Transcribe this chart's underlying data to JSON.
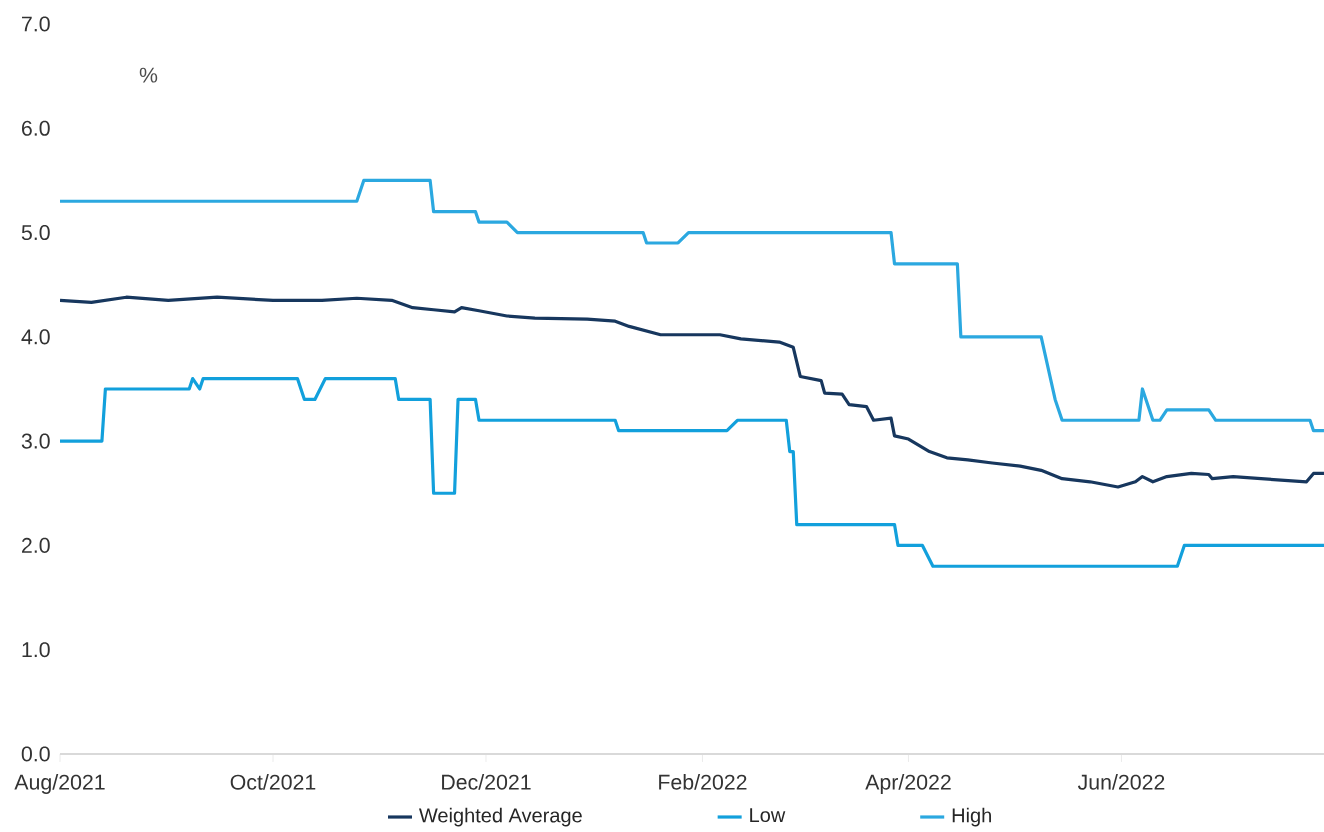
{
  "chart_data": {
    "type": "line",
    "ylabel": "%",
    "xlim": [
      "2021-08-01",
      "2022-07-29"
    ],
    "xticks": [
      {
        "value": "2021-08-01",
        "label": "Aug/2021"
      },
      {
        "value": "2021-10-01",
        "label": "Oct/2021"
      },
      {
        "value": "2021-12-01",
        "label": "Dec/2021"
      },
      {
        "value": "2022-02-01",
        "label": "Feb/2022"
      },
      {
        "value": "2022-04-01",
        "label": "Apr/2022"
      },
      {
        "value": "2022-06-01",
        "label": "Jun/2022"
      }
    ],
    "ylim": [
      0,
      7
    ],
    "yticks": [
      {
        "value": 0,
        "label": "0.0"
      },
      {
        "value": 1,
        "label": "1.0"
      },
      {
        "value": 2,
        "label": "2.0"
      },
      {
        "value": 3,
        "label": "3.0"
      },
      {
        "value": 4,
        "label": "4.0"
      },
      {
        "value": 5,
        "label": "5.0"
      },
      {
        "value": 6,
        "label": "6.0"
      },
      {
        "value": 7,
        "label": "7.0"
      }
    ],
    "legend": "bottom",
    "grid": false,
    "marker": "none",
    "line_style": "solid",
    "series": [
      {
        "name": "Weighted Average",
        "color": "#17375e",
        "x": [
          "2021-08-01",
          "2021-08-10",
          "2021-08-20",
          "2021-09-01",
          "2021-09-15",
          "2021-10-01",
          "2021-10-15",
          "2021-10-25",
          "2021-11-04",
          "2021-11-10",
          "2021-11-16",
          "2021-11-22",
          "2021-11-24",
          "2021-11-29",
          "2021-12-07",
          "2021-12-15",
          "2021-12-30",
          "2022-01-07",
          "2022-01-11",
          "2022-01-20",
          "2022-02-06",
          "2022-02-12",
          "2022-02-23",
          "2022-02-27",
          "2022-03-01",
          "2022-03-07",
          "2022-03-08",
          "2022-03-13",
          "2022-03-15",
          "2022-03-20",
          "2022-03-22",
          "2022-03-27",
          "2022-03-28",
          "2022-04-01",
          "2022-04-07",
          "2022-04-12",
          "2022-04-18",
          "2022-04-25",
          "2022-05-03",
          "2022-05-09",
          "2022-05-15",
          "2022-05-23",
          "2022-05-31",
          "2022-06-05",
          "2022-06-07",
          "2022-06-10",
          "2022-06-14",
          "2022-06-21",
          "2022-06-26",
          "2022-06-27",
          "2022-07-03",
          "2022-07-11",
          "2022-07-24",
          "2022-07-26",
          "2022-07-29"
        ],
        "values": [
          4.35,
          4.33,
          4.38,
          4.35,
          4.38,
          4.35,
          4.35,
          4.37,
          4.35,
          4.28,
          4.26,
          4.24,
          4.28,
          4.25,
          4.2,
          4.18,
          4.17,
          4.15,
          4.1,
          4.02,
          4.02,
          3.98,
          3.95,
          3.9,
          3.62,
          3.58,
          3.46,
          3.45,
          3.35,
          3.33,
          3.2,
          3.22,
          3.05,
          3.02,
          2.9,
          2.84,
          2.82,
          2.79,
          2.76,
          2.72,
          2.64,
          2.61,
          2.56,
          2.61,
          2.66,
          2.61,
          2.66,
          2.69,
          2.68,
          2.64,
          2.66,
          2.64,
          2.61,
          2.69,
          2.69
        ]
      },
      {
        "name": "Low",
        "color": "#12a0dc",
        "x": [
          "2021-08-01",
          "2021-08-13",
          "2021-08-14",
          "2021-09-07",
          "2021-09-08",
          "2021-09-10",
          "2021-09-11",
          "2021-10-08",
          "2021-10-10",
          "2021-10-13",
          "2021-10-16",
          "2021-11-05",
          "2021-11-06",
          "2021-11-15",
          "2021-11-16",
          "2021-11-22",
          "2021-11-23",
          "2021-11-28",
          "2021-11-29",
          "2022-01-07",
          "2022-01-08",
          "2022-02-08",
          "2022-02-11",
          "2022-02-25",
          "2022-02-26",
          "2022-02-27",
          "2022-02-28",
          "2022-03-28",
          "2022-03-29",
          "2022-04-05",
          "2022-04-08",
          "2022-06-17",
          "2022-06-19",
          "2022-07-29"
        ],
        "values": [
          3.0,
          3.0,
          3.5,
          3.5,
          3.6,
          3.5,
          3.6,
          3.6,
          3.4,
          3.4,
          3.6,
          3.6,
          3.4,
          3.4,
          2.5,
          2.5,
          3.4,
          3.4,
          3.2,
          3.2,
          3.1,
          3.1,
          3.2,
          3.2,
          2.9,
          2.9,
          2.2,
          2.2,
          2.0,
          2.0,
          1.8,
          1.8,
          2.0,
          2.0
        ]
      },
      {
        "name": "High",
        "color": "#2ba8e0",
        "x": [
          "2021-08-01",
          "2021-10-25",
          "2021-10-27",
          "2021-11-15",
          "2021-11-16",
          "2021-11-28",
          "2021-11-29",
          "2021-12-07",
          "2021-12-10",
          "2022-01-15",
          "2022-01-16",
          "2022-01-25",
          "2022-01-28",
          "2022-03-27",
          "2022-03-28",
          "2022-04-15",
          "2022-04-16",
          "2022-05-09",
          "2022-05-13",
          "2022-05-15",
          "2022-06-06",
          "2022-06-07",
          "2022-06-10",
          "2022-06-12",
          "2022-06-14",
          "2022-06-26",
          "2022-06-28",
          "2022-07-25",
          "2022-07-26",
          "2022-07-29"
        ],
        "values": [
          5.3,
          5.3,
          5.5,
          5.5,
          5.2,
          5.2,
          5.1,
          5.1,
          5.0,
          5.0,
          4.9,
          4.9,
          5.0,
          5.0,
          4.7,
          4.7,
          4.0,
          4.0,
          3.4,
          3.2,
          3.2,
          3.5,
          3.2,
          3.2,
          3.3,
          3.3,
          3.2,
          3.2,
          3.1,
          3.1
        ]
      }
    ]
  }
}
